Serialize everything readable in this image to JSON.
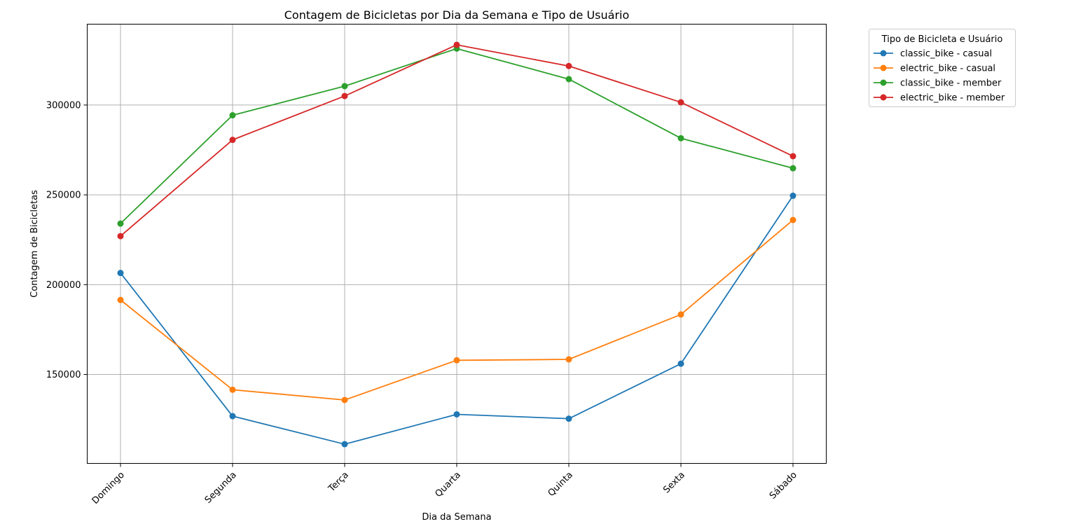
{
  "chart_data": {
    "type": "line",
    "title": "Contagem de Bicicletas por Dia da Semana e Tipo de Usuário",
    "xlabel": "Dia da Semana",
    "ylabel": "Contagem de Bicicletas",
    "categories": [
      "Domingo",
      "Segunda",
      "Terça",
      "Quarta",
      "Quinta",
      "Sexta",
      "Sábado"
    ],
    "ylim": [
      100500,
      345000
    ],
    "yticks": [
      150000,
      200000,
      250000,
      300000
    ],
    "ytick_labels": [
      "150000",
      "200000",
      "250000",
      "300000"
    ],
    "grid": true,
    "legend_title": "Tipo de Bicicleta e Usuário",
    "legend_position": "outside-top-right",
    "series": [
      {
        "name": "classic_bike - casual",
        "color": "#1f77b4",
        "values": [
          206500,
          126800,
          111200,
          127800,
          125400,
          156000,
          249500
        ]
      },
      {
        "name": "electric_bike - casual",
        "color": "#ff7f0e",
        "values": [
          191500,
          141500,
          135800,
          157900,
          158400,
          183400,
          236000
        ]
      },
      {
        "name": "classic_bike - member",
        "color": "#2ca02c",
        "values": [
          234000,
          294300,
          310500,
          331400,
          314400,
          281500,
          264800
        ]
      },
      {
        "name": "electric_bike - member",
        "color": "#d62728",
        "values": [
          227000,
          280600,
          305000,
          333500,
          321700,
          301500,
          271500
        ]
      }
    ]
  }
}
